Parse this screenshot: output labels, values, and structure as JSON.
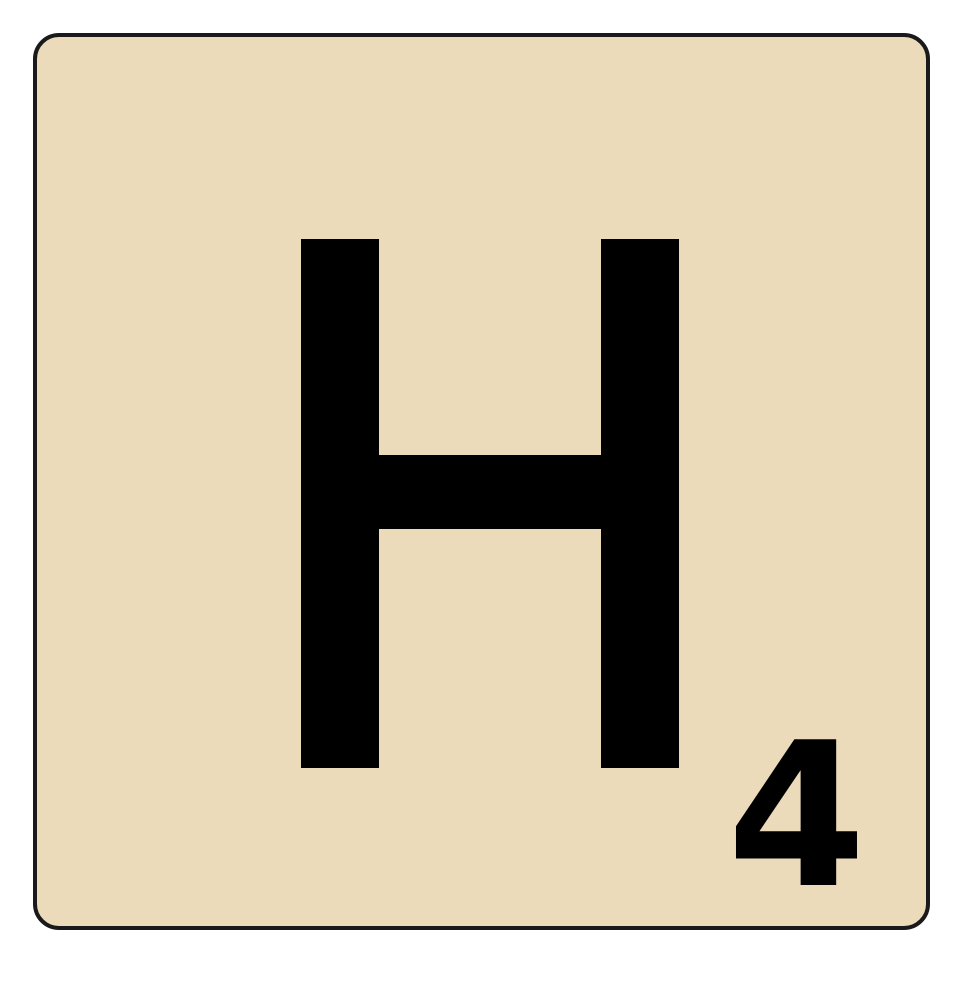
{
  "tile": {
    "letter": "H",
    "points": "4",
    "colors": {
      "face": "#ecdbbb",
      "border": "#1a1a1a",
      "ink": "#000000"
    }
  }
}
